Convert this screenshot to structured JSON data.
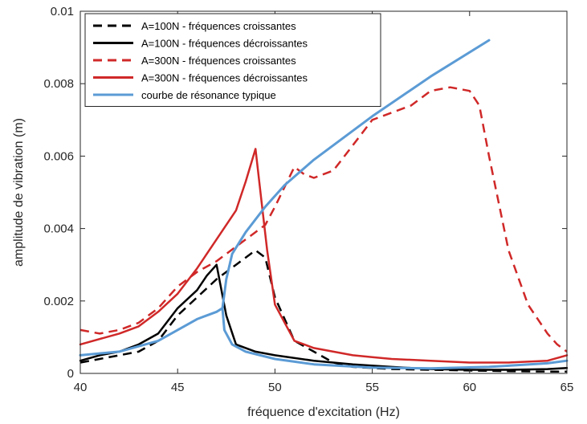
{
  "chart_data": {
    "type": "line",
    "title": "",
    "xlabel": "fréquence d'excitation (Hz)",
    "ylabel": "amplitude de vibration (m)",
    "xlim": [
      40,
      65
    ],
    "ylim": [
      0,
      0.01
    ],
    "xticks": [
      40,
      45,
      50,
      55,
      60,
      65
    ],
    "xtick_labels": [
      "40",
      "45",
      "50",
      "55",
      "60",
      "65"
    ],
    "yticks": [
      0,
      0.002,
      0.004,
      0.006,
      0.008,
      0.01
    ],
    "ytick_labels": [
      "0",
      "0.002",
      "0.004",
      "0.006",
      "0.008",
      "0.01"
    ],
    "grid": false,
    "legend_position": "top-left",
    "series": [
      {
        "name": "A=100N - fréquences croissantes",
        "color": "#000000",
        "dash": "dashed",
        "x": [
          40,
          41,
          42,
          43,
          44,
          45,
          46,
          47,
          48,
          48.5,
          49,
          49.5,
          50,
          51,
          52,
          53,
          54,
          56,
          58,
          60,
          62,
          64,
          65
        ],
        "y": [
          0.0003,
          0.0004,
          0.0005,
          0.0006,
          0.0009,
          0.0016,
          0.0021,
          0.0026,
          0.003,
          0.0032,
          0.0034,
          0.0032,
          0.0021,
          0.0009,
          0.0006,
          0.0003,
          0.00018,
          0.00012,
          0.0001,
          8e-05,
          6e-05,
          5e-05,
          5e-05
        ]
      },
      {
        "name": "A=100N - fréquences décroissantes",
        "color": "#000000",
        "dash": "solid",
        "x": [
          40,
          41,
          42,
          43,
          44,
          45,
          46,
          46.5,
          47,
          47.5,
          48,
          49,
          50,
          52,
          54,
          56,
          58,
          60,
          62,
          64,
          65
        ],
        "y": [
          0.00035,
          0.0005,
          0.0006,
          0.0008,
          0.0011,
          0.0018,
          0.0023,
          0.0027,
          0.003,
          0.0016,
          0.0008,
          0.0006,
          0.0005,
          0.00035,
          0.00025,
          0.00018,
          0.00012,
          0.0001,
          0.0001,
          0.00012,
          0.00015
        ]
      },
      {
        "name": "A=300N - fréquences croissantes",
        "color": "#d02828",
        "dash": "dashed",
        "x": [
          40,
          41,
          42,
          43,
          44,
          45,
          46,
          47,
          48,
          49,
          49.5,
          50,
          51,
          51.5,
          52,
          53,
          54,
          55,
          56,
          57,
          58,
          59,
          60,
          60.5,
          61,
          62,
          63,
          64,
          64.5,
          65
        ],
        "y": [
          0.0012,
          0.0011,
          0.0012,
          0.0014,
          0.0018,
          0.0024,
          0.0028,
          0.0031,
          0.0035,
          0.0039,
          0.0041,
          0.0046,
          0.0057,
          0.0055,
          0.0054,
          0.0056,
          0.0063,
          0.007,
          0.0072,
          0.0074,
          0.0078,
          0.0079,
          0.0078,
          0.0074,
          0.006,
          0.0034,
          0.0019,
          0.0011,
          0.0008,
          0.0006
        ]
      },
      {
        "name": "A=300N - fréquences décroissantes",
        "color": "#d02828",
        "dash": "solid",
        "x": [
          40,
          42,
          43,
          44,
          45,
          46,
          47,
          48,
          48.5,
          49,
          49.3,
          49.6,
          50,
          51,
          52,
          53,
          54,
          55,
          56,
          58,
          60,
          62,
          64,
          65
        ],
        "y": [
          0.0008,
          0.0011,
          0.0013,
          0.0017,
          0.0022,
          0.0029,
          0.0037,
          0.0045,
          0.0053,
          0.0062,
          0.0048,
          0.0034,
          0.0019,
          0.0009,
          0.0007,
          0.0006,
          0.0005,
          0.00045,
          0.0004,
          0.00035,
          0.0003,
          0.0003,
          0.00035,
          0.0005
        ]
      },
      {
        "name": "courbe de résonance typique",
        "color": "#5b9bd5",
        "dash": "solid",
        "x": [
          61,
          58,
          55,
          52,
          50.5,
          49.5,
          48.5,
          47.8,
          47.5,
          47.3,
          47.4,
          47.8,
          48.5,
          50,
          52,
          55,
          58,
          61,
          64,
          65,
          null,
          40,
          42,
          44,
          45,
          46,
          46.5,
          47,
          47.3
        ],
        "y": [
          0.0092,
          0.0082,
          0.0071,
          0.0059,
          0.0052,
          0.0046,
          0.0039,
          0.0033,
          0.0026,
          0.0018,
          0.0012,
          0.0008,
          0.0006,
          0.0004,
          0.00025,
          0.00016,
          0.00014,
          0.00018,
          0.00028,
          0.00035,
          null,
          0.0005,
          0.0006,
          0.0009,
          0.0012,
          0.0015,
          0.0016,
          0.0017,
          0.0018
        ]
      }
    ]
  }
}
